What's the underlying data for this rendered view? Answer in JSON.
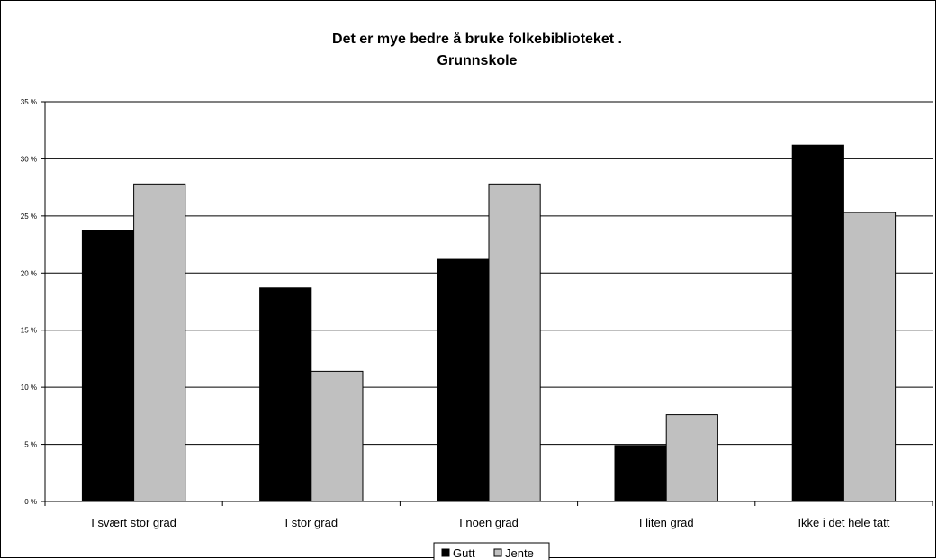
{
  "chart_data": {
    "type": "bar",
    "title": [
      "Det er mye bedre å bruke folkebiblioteket .",
      "Grunnskole"
    ],
    "categories": [
      "I svært stor grad",
      "I stor grad",
      "I noen grad",
      "I liten grad",
      "Ikke i det hele tatt"
    ],
    "series": [
      {
        "name": "Gutt",
        "color": "#000000",
        "values": [
          23.7,
          18.7,
          21.2,
          4.9,
          31.2
        ]
      },
      {
        "name": "Jente",
        "color": "#c0c0c0",
        "values": [
          27.8,
          11.4,
          27.8,
          7.6,
          25.3
        ]
      }
    ],
    "ylim": [
      0,
      35
    ],
    "yticks": [
      0,
      5,
      10,
      15,
      20,
      25,
      30,
      35
    ],
    "ytick_labels": [
      "0 %",
      "5 %",
      "10 %",
      "15 %",
      "20 %",
      "25 %",
      "30 %",
      "35 %"
    ],
    "grid": true,
    "legend_position": "bottom"
  }
}
